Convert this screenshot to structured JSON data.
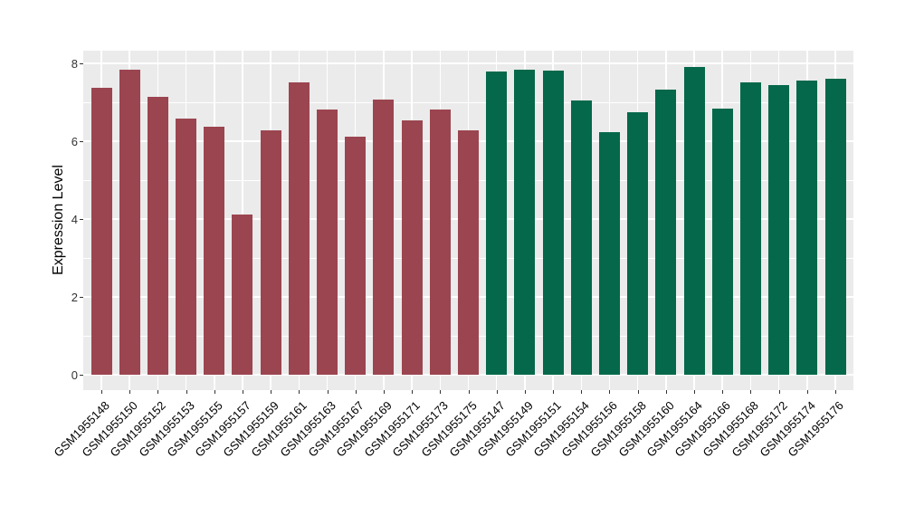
{
  "chart_data": {
    "type": "bar",
    "title": "",
    "xlabel": "",
    "ylabel": "Expression Level",
    "ylim": [
      0,
      8.33
    ],
    "yticks": [
      0,
      2,
      4,
      6,
      8
    ],
    "yticks_minor": [
      1,
      3,
      5,
      7
    ],
    "grid": "on",
    "legend": "none",
    "panel_background": "#EBEBEB",
    "gridline_color": "#ffffff",
    "group_colors": {
      "red": "#9B4550",
      "green": "#05684A"
    },
    "categories": [
      "GSM1955148",
      "GSM1955150",
      "GSM1955152",
      "GSM1955153",
      "GSM1955155",
      "GSM1955157",
      "GSM1955159",
      "GSM1955161",
      "GSM1955163",
      "GSM1955167",
      "GSM1955169",
      "GSM1955171",
      "GSM1955173",
      "GSM1955175",
      "GSM1955147",
      "GSM1955149",
      "GSM1955151",
      "GSM1955154",
      "GSM1955156",
      "GSM1955158",
      "GSM1955160",
      "GSM1955164",
      "GSM1955166",
      "GSM1955168",
      "GSM1955172",
      "GSM1955174",
      "GSM1955176"
    ],
    "values": [
      7.37,
      7.84,
      7.14,
      6.58,
      6.38,
      4.11,
      6.28,
      7.51,
      6.81,
      6.12,
      7.07,
      6.53,
      6.81,
      6.28,
      7.79,
      7.84,
      7.81,
      7.05,
      6.23,
      6.74,
      7.33,
      7.91,
      6.84,
      7.52,
      7.44,
      7.56,
      7.6
    ],
    "bar_groups": [
      "red",
      "red",
      "red",
      "red",
      "red",
      "red",
      "red",
      "red",
      "red",
      "red",
      "red",
      "red",
      "red",
      "red",
      "green",
      "green",
      "green",
      "green",
      "green",
      "green",
      "green",
      "green",
      "green",
      "green",
      "green",
      "green",
      "green"
    ]
  }
}
